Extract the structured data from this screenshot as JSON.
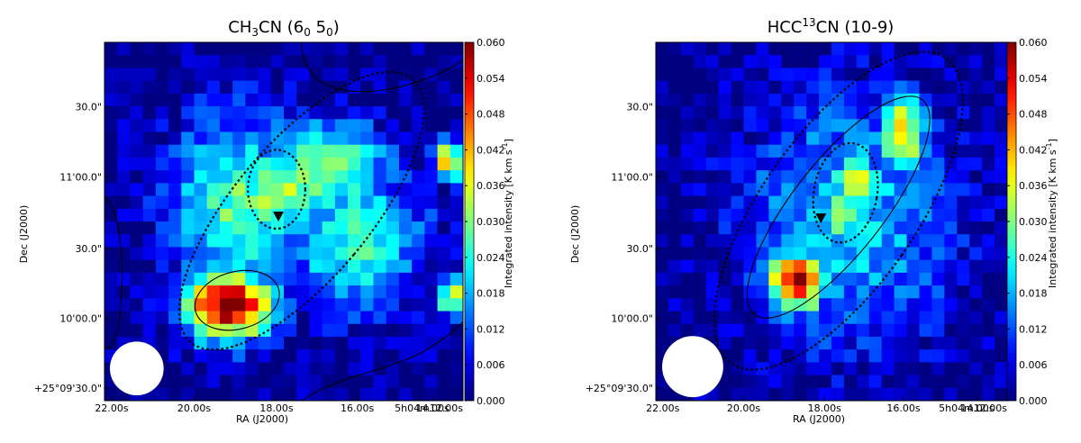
{
  "chart_data": [
    {
      "type": "heatmap",
      "title": {
        "main": "CH",
        "sub": "3",
        "post": "CN (6",
        "sub2": "0",
        "mid": " 5",
        "sub3": "0",
        "end": ")"
      },
      "xlabel": "RA (J2000)",
      "ylabel": "Dec (J2000)",
      "x_ticks": [
        "22.00s",
        "20.00s",
        "18.00s",
        "16.00s",
        "14.00s",
        "5h04m12.00s"
      ],
      "y_ticks": [
        "+25°09'30.0\"",
        "10'00.0\"",
        "30.0\"",
        "11'00.0\"",
        "30.0\""
      ],
      "colorbar": {
        "label": "Integrated intensity [K km s",
        "label_sup": "-1",
        "label_end": "]",
        "range": [
          0.0,
          0.06
        ],
        "ticks": [
          "0.000",
          "0.006",
          "0.012",
          "0.018",
          "0.024",
          "0.030",
          "0.036",
          "0.042",
          "0.048",
          "0.054",
          "0.060"
        ]
      },
      "peaks": [
        {
          "u": 0.345,
          "v": 0.735,
          "value": 0.062,
          "su": 0.09,
          "sv": 0.07
        },
        {
          "u": 0.48,
          "v": 0.42,
          "value": 0.036,
          "su": 0.08,
          "sv": 0.09
        },
        {
          "u": 0.62,
          "v": 0.35,
          "value": 0.033,
          "su": 0.12,
          "sv": 0.09
        },
        {
          "u": 0.96,
          "v": 0.33,
          "value": 0.042,
          "su": 0.03,
          "sv": 0.04
        },
        {
          "u": 0.97,
          "v": 0.71,
          "value": 0.038,
          "su": 0.03,
          "sv": 0.04
        },
        {
          "u": 0.38,
          "v": 0.45,
          "value": 0.028,
          "su": 0.14,
          "sv": 0.18
        },
        {
          "u": 0.7,
          "v": 0.55,
          "value": 0.026,
          "su": 0.14,
          "sv": 0.14
        }
      ],
      "source_marker": {
        "u": 0.485,
        "v": 0.485
      },
      "beam": {
        "u": 0.09,
        "v": 0.91,
        "r": 0.075
      }
    },
    {
      "type": "heatmap",
      "title": {
        "main": "HCC",
        "sup": "13",
        "post": "CN (10-9)"
      },
      "xlabel": "RA (J2000)",
      "ylabel": "Dec (J2000)",
      "x_ticks": [
        "22.00s",
        "20.00s",
        "18.00s",
        "16.00s",
        "14.00s",
        "5h04m12.00s"
      ],
      "y_ticks": [
        "+25°09'30.0\"",
        "10'00.0\"",
        "30.0\"",
        "11'00.0\"",
        "30.0\""
      ],
      "colorbar": {
        "label": "Integrated intensity [K km s",
        "label_sup": "-1",
        "label_end": "]",
        "range": [
          0.0,
          0.06
        ],
        "ticks": [
          "0.000",
          "0.006",
          "0.012",
          "0.018",
          "0.024",
          "0.030",
          "0.036",
          "0.042",
          "0.048",
          "0.054",
          "0.060"
        ]
      },
      "peaks": [
        {
          "u": 0.4,
          "v": 0.67,
          "value": 0.057,
          "su": 0.06,
          "sv": 0.06
        },
        {
          "u": 0.57,
          "v": 0.39,
          "value": 0.041,
          "su": 0.05,
          "sv": 0.05
        },
        {
          "u": 0.7,
          "v": 0.25,
          "value": 0.042,
          "su": 0.05,
          "sv": 0.08
        },
        {
          "u": 0.53,
          "v": 0.48,
          "value": 0.034,
          "su": 0.04,
          "sv": 0.05
        },
        {
          "u": 0.55,
          "v": 0.5,
          "value": 0.02,
          "su": 0.22,
          "sv": 0.26
        }
      ],
      "source_marker": {
        "u": 0.47,
        "v": 0.49
      },
      "beam": {
        "u": 0.105,
        "v": 0.905,
        "r": 0.087
      }
    }
  ]
}
